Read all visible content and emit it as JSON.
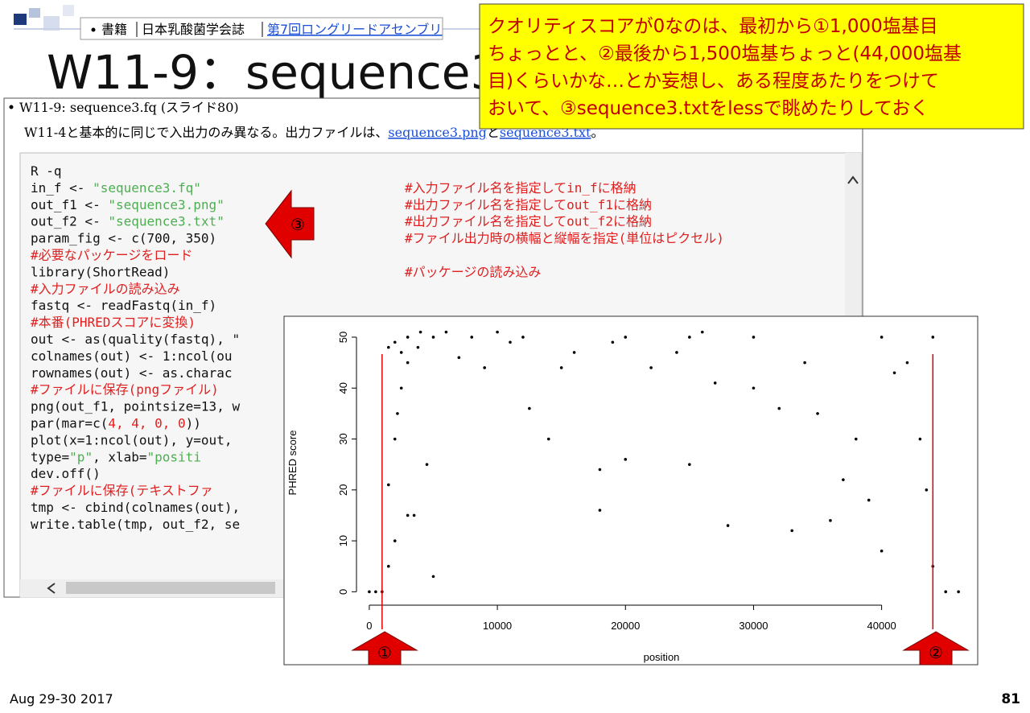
{
  "slide": {
    "breadcrumb": [
      "書籍",
      "日本乳酸菌学会誌",
      "第7回ロングリードアセンブリ"
    ],
    "title": "W11-9：sequence3",
    "callout": [
      "クオリティスコアが0なのは、最初から①1,000塩基目",
      "ちょっとと、②最後から1,500塩基ちょっと(44,000塩基",
      "目)くらいかな…とか妄想し、ある程度あたりをつけて",
      "おいて、③sequence3.txtをlessで眺めたりしておく"
    ],
    "footer_date": "Aug 29-30 2017",
    "page_number": "81"
  },
  "page": {
    "bullet": "W11-9: sequence3.fq (スライド80)",
    "desc": [
      "W11-4と基本的に同じで入出力のみ異なる。出力ファイルは、",
      "sequence3.png",
      "と",
      "sequence3.txt",
      "。"
    ],
    "code": [
      [
        {
          "text": "R -q",
          "style": "code"
        }
      ],
      [
        {
          "text": "in_f <- ",
          "style": "code"
        },
        {
          "text": "\"sequence3.fq\"",
          "style": "str"
        },
        {
          "text": "#入力ファイル名を指定してin_fに格納",
          "style": "cmt"
        }
      ],
      [
        {
          "text": "out_f1 <- ",
          "style": "code"
        },
        {
          "text": "\"sequence3.png\"",
          "style": "str"
        },
        {
          "text": "#出力ファイル名を指定してout_f1に格納",
          "style": "cmt"
        }
      ],
      [
        {
          "text": "out_f2 <- ",
          "style": "code"
        },
        {
          "text": "\"sequence3.txt\"",
          "style": "str"
        },
        {
          "text": "#出力ファイル名を指定してout_f2に格納",
          "style": "cmt"
        }
      ],
      [
        {
          "text": "param_fig <- c(700, 350)",
          "style": "code"
        },
        {
          "text": "#ファイル出力時の横幅と縦幅を指定(単位はピクセル)",
          "style": "cmt"
        }
      ],
      [
        {
          "text": "#必要なパッケージをロード",
          "style": "cmtline"
        }
      ],
      [
        {
          "text": "library(ShortRead)",
          "style": "code"
        },
        {
          "text": "#パッケージの読み込み",
          "style": "cmt"
        }
      ],
      [
        {
          "text": "#入力ファイルの読み込み",
          "style": "cmtline"
        }
      ],
      [
        {
          "text": "fastq <- readFastq(in_f)",
          "style": "code"
        }
      ],
      [
        {
          "text": "#本番(PHREDスコアに変換)",
          "style": "cmtline"
        }
      ],
      [
        {
          "text": "out <- as(quality(fastq), \"",
          "style": "code"
        }
      ],
      [
        {
          "text": "colnames(out) <- 1:ncol(ou",
          "style": "code"
        }
      ],
      [
        {
          "text": "rownames(out) <- as.charac",
          "style": "code"
        }
      ],
      [
        {
          "text": "#ファイルに保存(pngファイル)",
          "style": "cmtline"
        }
      ],
      [
        {
          "text": "png(out_f1, pointsize=13, w",
          "style": "code"
        }
      ],
      [
        {
          "text": "par(mar=c(",
          "style": "code"
        },
        {
          "text": "4, 4, 0, 0",
          "style": "num"
        },
        {
          "text": "))",
          "style": "code"
        }
      ],
      [
        {
          "text": "plot(x=1:ncol(out), y=out,",
          "style": "code"
        }
      ],
      [
        {
          "text": "     type=",
          "style": "code"
        },
        {
          "text": "\"p\"",
          "style": "str"
        },
        {
          "text": ", xlab=",
          "style": "code"
        },
        {
          "text": "\"positi",
          "style": "str"
        }
      ],
      [
        {
          "text": "dev.off()",
          "style": "code"
        }
      ],
      [
        {
          "text": "#ファイルに保存(テキストファ",
          "style": "cmtline"
        }
      ],
      [
        {
          "text": "tmp <- cbind(colnames(out),",
          "style": "code"
        }
      ],
      [
        {
          "text": "write.table(tmp, out_f2, se",
          "style": "code"
        }
      ]
    ]
  },
  "markers": [
    "③",
    "①",
    "②"
  ],
  "chart_data": {
    "type": "scatter",
    "xlabel": "position",
    "ylabel": "PHRED score",
    "color": "#000000",
    "vline_color": "#e00000",
    "vlines": [
      1000,
      44000
    ],
    "xlim": [
      -1000,
      47500
    ],
    "ylim": [
      -2,
      53
    ],
    "xticks": [
      0,
      10000,
      20000,
      30000,
      40000
    ],
    "yticks": [
      0,
      10,
      20,
      30,
      40,
      50
    ],
    "x": [
      0,
      500,
      1000,
      1500,
      1500,
      1500,
      2000,
      2000,
      2000,
      2500,
      2500,
      3000,
      3000,
      3000,
      3500,
      4000,
      4500,
      5000,
      5000,
      6000,
      7000,
      8000,
      9000,
      10000,
      11000,
      12000,
      12500,
      14000,
      15000,
      16000,
      18000,
      18000,
      19000,
      20000,
      20000,
      22000,
      24000,
      25000,
      25000,
      27000,
      28000,
      30000,
      30000,
      32000,
      33000,
      34000,
      35000,
      36000,
      37000,
      38000,
      39000,
      40000,
      40000,
      41000,
      42000,
      43000,
      43500,
      44000,
      44000,
      45000,
      46000,
      2200,
      3800,
      26000
    ],
    "y": [
      0,
      0,
      0,
      5,
      21,
      48,
      10,
      30,
      49,
      40,
      47,
      45,
      50,
      15,
      15,
      51,
      25,
      3,
      50,
      51,
      46,
      50,
      44,
      51,
      49,
      50,
      36,
      30,
      44,
      47,
      16,
      24,
      49,
      50,
      26,
      44,
      47,
      25,
      50,
      41,
      13,
      50,
      40,
      36,
      12,
      45,
      35,
      14,
      22,
      30,
      18,
      8,
      50,
      43,
      45,
      30,
      20,
      5,
      50,
      0,
      0,
      35,
      48,
      51
    ]
  }
}
